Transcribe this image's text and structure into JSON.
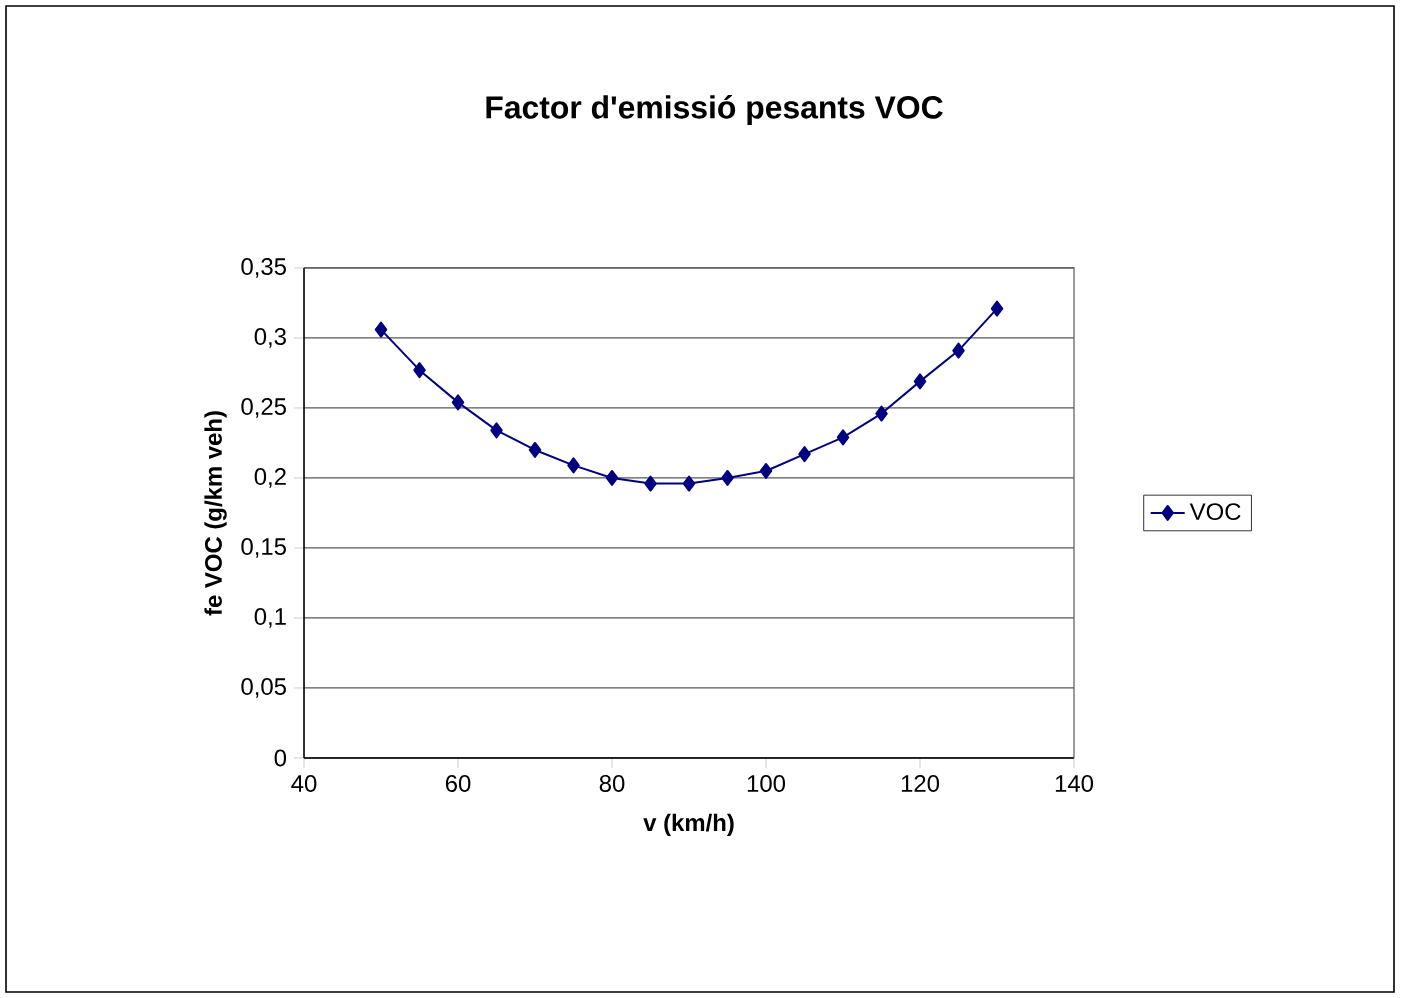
{
  "chart_data": {
    "type": "line",
    "title": "Factor d'emissió pesants VOC",
    "xlabel": "v (km/h)",
    "ylabel": "fe VOC (g/km veh)",
    "x": [
      50,
      55,
      60,
      65,
      70,
      75,
      80,
      85,
      90,
      95,
      100,
      105,
      110,
      115,
      120,
      125,
      130
    ],
    "series": [
      {
        "name": "VOC",
        "color": "#000080",
        "values": [
          0.306,
          0.277,
          0.254,
          0.234,
          0.22,
          0.209,
          0.2,
          0.196,
          0.196,
          0.2,
          0.205,
          0.217,
          0.229,
          0.246,
          0.269,
          0.291,
          0.321
        ]
      }
    ],
    "xlim": [
      40,
      140
    ],
    "xticks": [
      40,
      60,
      80,
      100,
      120,
      140
    ],
    "ylim": [
      0,
      0.35
    ],
    "yticks": [
      0,
      {
        "value": 0.05,
        "label": "0,05"
      },
      {
        "value": 0.1,
        "label": "0,1"
      },
      {
        "value": 0.15,
        "label": "0,15"
      },
      {
        "value": 0.2,
        "label": "0,2"
      },
      {
        "value": 0.25,
        "label": "0,25"
      },
      {
        "value": 0.3,
        "label": "0,3"
      },
      {
        "value": 0.35,
        "label": "0,35"
      }
    ],
    "grid": "y",
    "legend": "right",
    "marker": "diamond",
    "line_style": "solid"
  }
}
